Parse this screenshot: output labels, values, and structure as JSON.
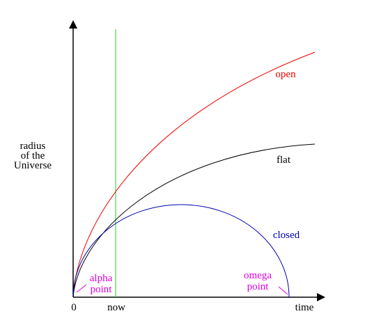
{
  "axes": {
    "y_label": [
      "radius",
      "of the",
      "Universe"
    ],
    "x_label": "time",
    "origin_label": "0",
    "now_label": "now"
  },
  "curves": [
    {
      "label": "open"
    },
    {
      "label": "flat"
    },
    {
      "label": "closed"
    }
  ],
  "points": [
    {
      "label": [
        "alpha",
        "point"
      ]
    },
    {
      "label": [
        "omega",
        "point"
      ]
    }
  ]
}
